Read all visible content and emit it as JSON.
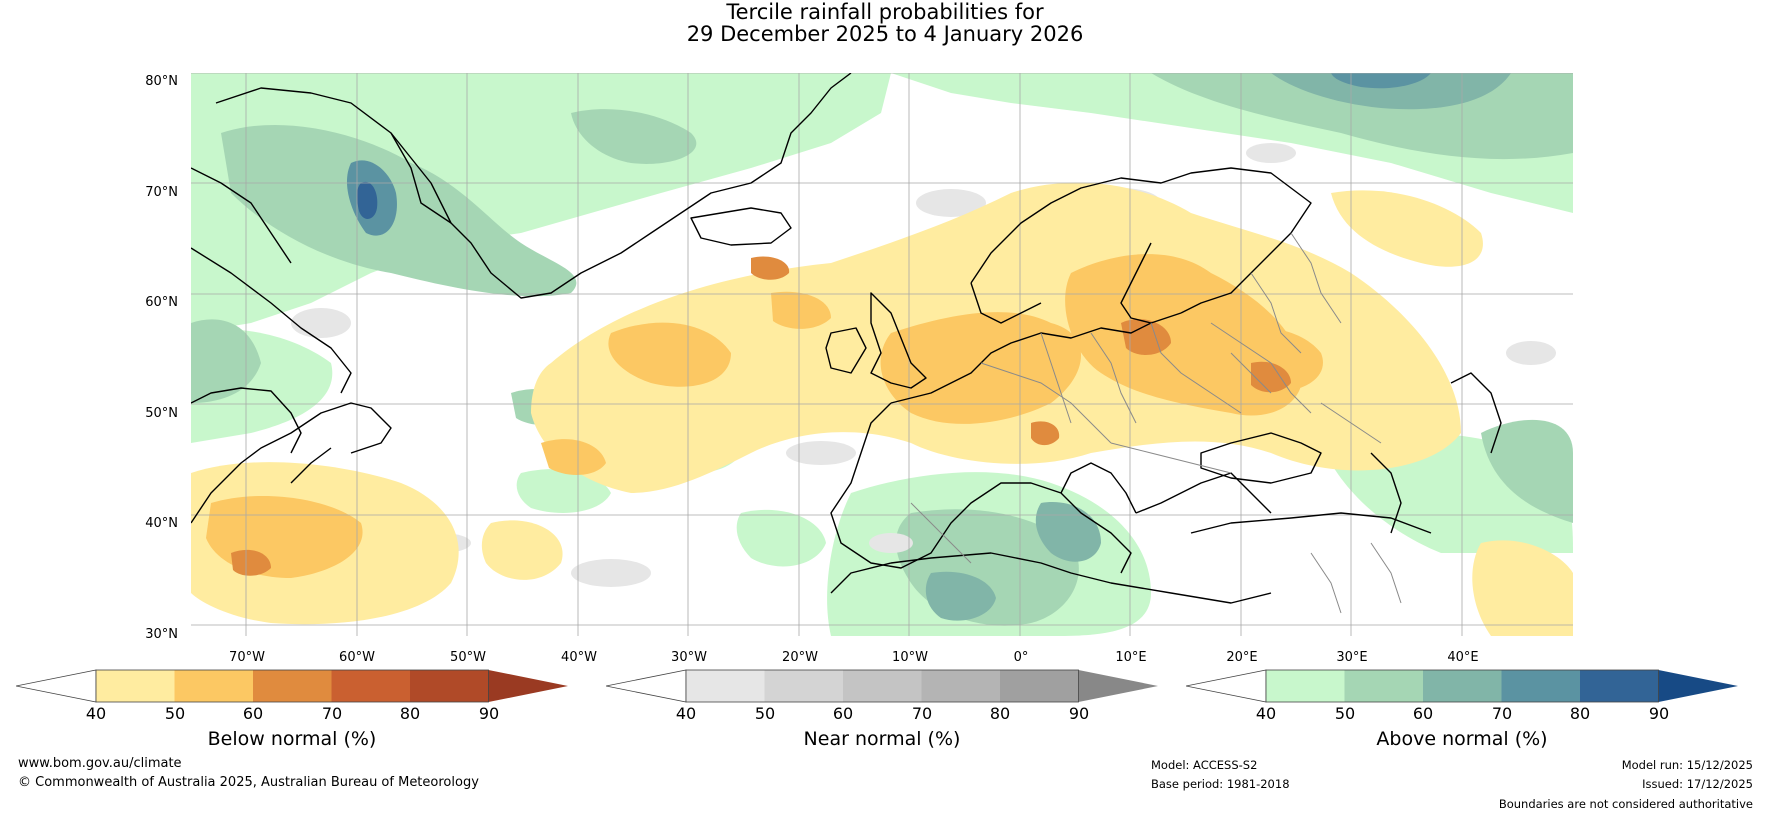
{
  "title": {
    "line1": "Tercile rainfall probabilities for",
    "line2": "29 December 2025 to 4 January 2026"
  },
  "map": {
    "region": "North Atlantic and Europe",
    "lat_labels": [
      "80°N",
      "70°N",
      "60°N",
      "50°N",
      "40°N",
      "30°N"
    ],
    "lon_labels": [
      "70°W",
      "60°W",
      "50°W",
      "40°W",
      "30°W",
      "20°W",
      "10°W",
      "0°",
      "10°E",
      "20°E",
      "30°E",
      "40°E"
    ]
  },
  "legends": [
    {
      "title": "Below normal (%)",
      "ticks": [
        "40",
        "50",
        "60",
        "70",
        "80",
        "90"
      ],
      "colors": [
        "#ffffff",
        "#ffeca0",
        "#fcc863",
        "#e08b3e",
        "#ca6030",
        "#b04a28",
        "#9a3a22"
      ]
    },
    {
      "title": "Near normal (%)",
      "ticks": [
        "40",
        "50",
        "60",
        "70",
        "80",
        "90"
      ],
      "colors": [
        "#ffffff",
        "#e6e6e6",
        "#d4d4d4",
        "#c4c4c4",
        "#b4b4b4",
        "#a0a0a0",
        "#888888"
      ]
    },
    {
      "title": "Above normal (%)",
      "ticks": [
        "40",
        "50",
        "60",
        "70",
        "80",
        "90"
      ],
      "colors": [
        "#ffffff",
        "#c8f7cc",
        "#a5d6b4",
        "#81b5a8",
        "#5b93a2",
        "#326496",
        "#174a85"
      ]
    }
  ],
  "footer": {
    "website": "www.bom.gov.au/climate",
    "copyright": "© Commonwealth of Australia 2025, Australian Bureau of Meteorology",
    "model": "Model: ACCESS-S2",
    "base_period": "Base period: 1981-2018",
    "model_run": "Model run: 15/12/2025",
    "issued": "Issued: 17/12/2025",
    "disclaimer": "Boundaries are not considered authoritative"
  }
}
